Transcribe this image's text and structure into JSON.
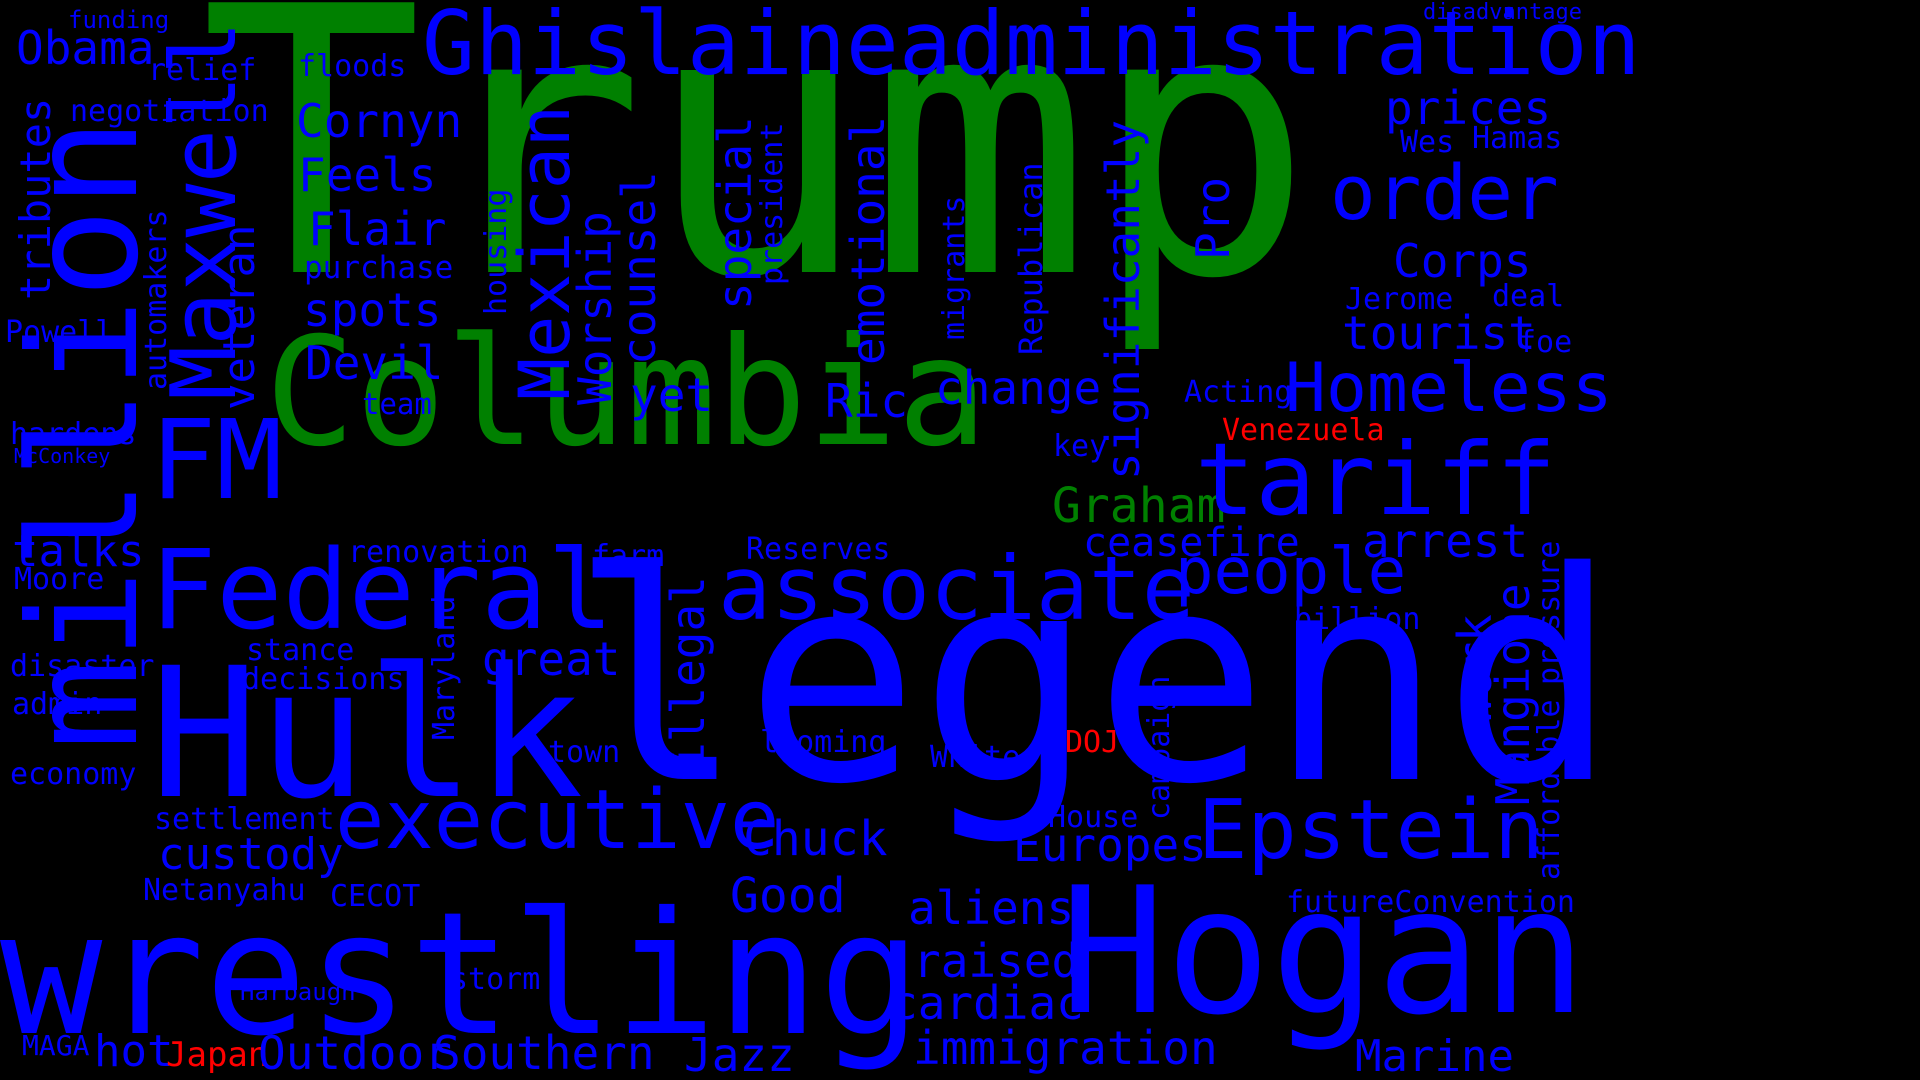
{
  "colors": {
    "background": "#000000",
    "green": "#008000",
    "blue": "#0000ff",
    "red": "#ff0000"
  },
  "words": [
    "Trump",
    "Columbia",
    "Graham",
    "legend",
    "Hulk",
    "Hogan",
    "wrestling",
    "million",
    "Maxwell",
    "Federal",
    "associate",
    "executive",
    "Epstein",
    "tariff",
    "Homeless",
    "Ghislaineadministration",
    "order",
    "people",
    "Mexican",
    "Obama",
    "funding",
    "relief",
    "floods",
    "negotiation",
    "Cornyn",
    "Feels",
    "Flair",
    "purchase",
    "spots",
    "Devil",
    "tributes",
    "Powell",
    "automakers",
    "veteran",
    "team",
    "hardens",
    "McConkey",
    "talks",
    "Moore",
    "disaster",
    "admin",
    "economy",
    "settlement",
    "custody",
    "Netanyahu",
    "CECOT",
    "Harbaugh",
    "MAGA",
    "hot",
    "Japan",
    "Outdoor",
    "Southern",
    "Jazz",
    "immigration",
    "Marine",
    "cardiac",
    "storm",
    "raised",
    "aliens",
    "Good",
    "Chuck",
    "Europes",
    "House",
    "White",
    "looming",
    "town",
    "DOJ",
    "campaign",
    "future",
    "Convention",
    "renovation",
    "farm",
    "Reserves",
    "stance",
    "decisions",
    "great",
    "Maryland",
    "illegal",
    "yet",
    "Ric",
    "change",
    "ceasefire",
    "arrest",
    "key",
    "Acting",
    "Venezuela",
    "billion",
    "work",
    "Mangione",
    "affordable",
    "pressure",
    "prices",
    "Wes",
    "Hamas",
    "deal",
    "Corps",
    "Jerome",
    "tourist",
    "foe",
    "disadvantage",
    "housing",
    "Worship",
    "counsel",
    "special",
    "president",
    "emotional",
    "migrants",
    "Republican",
    "significantly",
    "Pro",
    "FM"
  ]
}
